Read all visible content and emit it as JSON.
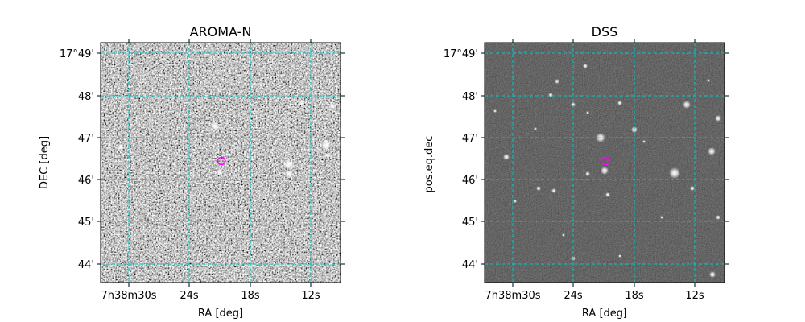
{
  "chart_data": [
    {
      "type": "heatmap",
      "title": "AROMA-N",
      "xlabel": "RA [deg]",
      "ylabel": "DEC [deg]",
      "colormap": "gray",
      "grid": true,
      "grid_color": "#00c8c8",
      "x_ticks": [
        "7h38m30s",
        "24s",
        "18s",
        "12s"
      ],
      "y_ticks": [
        "17°49'",
        "48'",
        "47'",
        "46'",
        "45'",
        "44'"
      ],
      "marker": {
        "shape": "circle",
        "color": "#ff00ff"
      }
    },
    {
      "type": "heatmap",
      "title": "DSS",
      "xlabel": "RA [deg]",
      "ylabel": "pos.eq.dec",
      "colormap": "gray",
      "grid": true,
      "grid_color": "#00c8c8",
      "x_ticks": [
        "7h38m30s",
        "24s",
        "18s",
        "12s"
      ],
      "y_ticks": [
        "17°49'",
        "48'",
        "47'",
        "46'",
        "45'",
        "44'"
      ],
      "marker": {
        "shape": "circle",
        "color": "#ff00ff"
      }
    }
  ]
}
